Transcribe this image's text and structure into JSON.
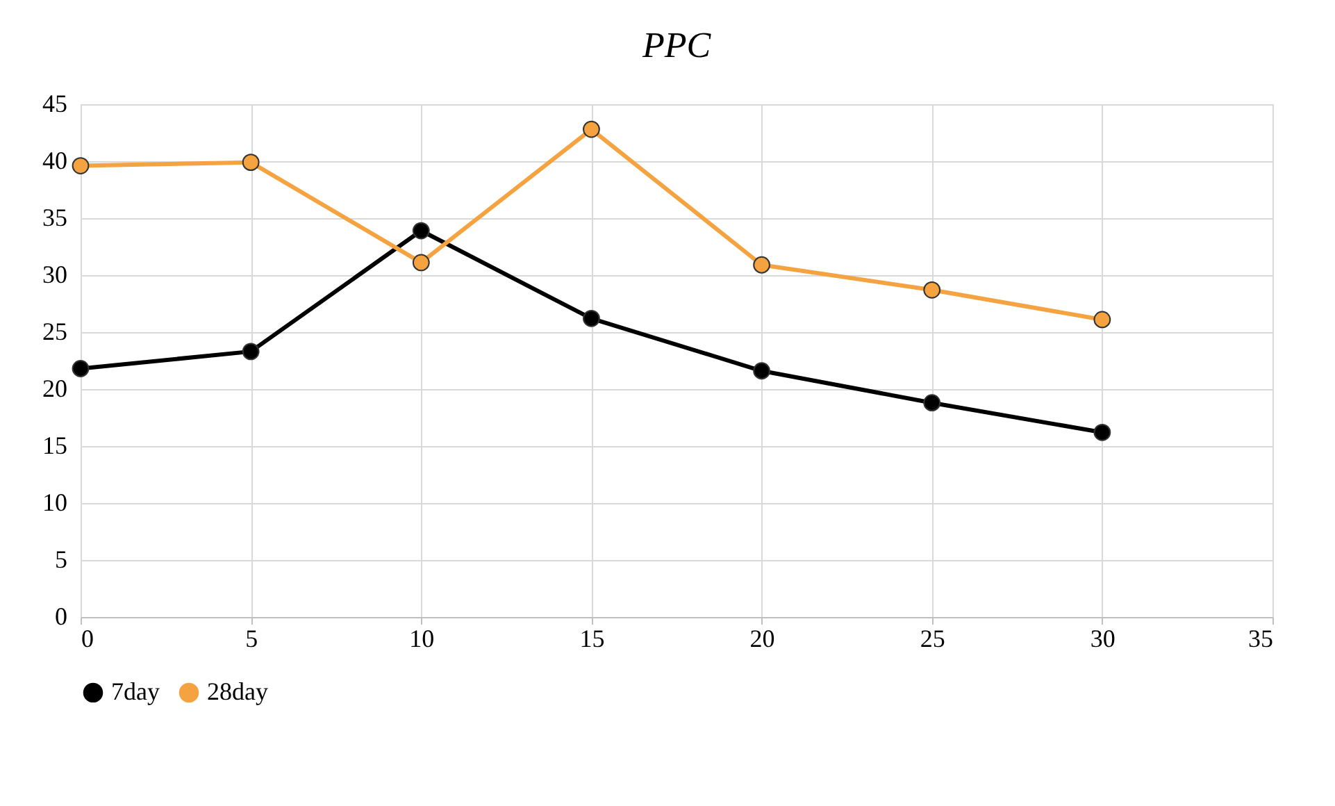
{
  "chart_data": {
    "type": "line",
    "title": "PPC",
    "x": [
      0,
      5,
      10,
      15,
      20,
      25,
      30
    ],
    "series": [
      {
        "name": "7day",
        "color": "#000000",
        "values": [
          21.8,
          23.3,
          33.9,
          26.2,
          21.6,
          18.8,
          16.2
        ]
      },
      {
        "name": "28day",
        "color": "#f4a340",
        "values": [
          39.6,
          39.9,
          31.1,
          42.8,
          30.9,
          28.7,
          26.1
        ]
      }
    ],
    "xlim": [
      0,
      35
    ],
    "xticks": [
      0,
      5,
      10,
      15,
      20,
      25,
      30,
      35
    ],
    "ylim": [
      0,
      45
    ],
    "yticks": [
      0,
      5,
      10,
      15,
      20,
      25,
      30,
      35,
      40,
      45
    ],
    "grid": true,
    "legend": "bottom",
    "marker": "circle",
    "line_style": "solid"
  }
}
